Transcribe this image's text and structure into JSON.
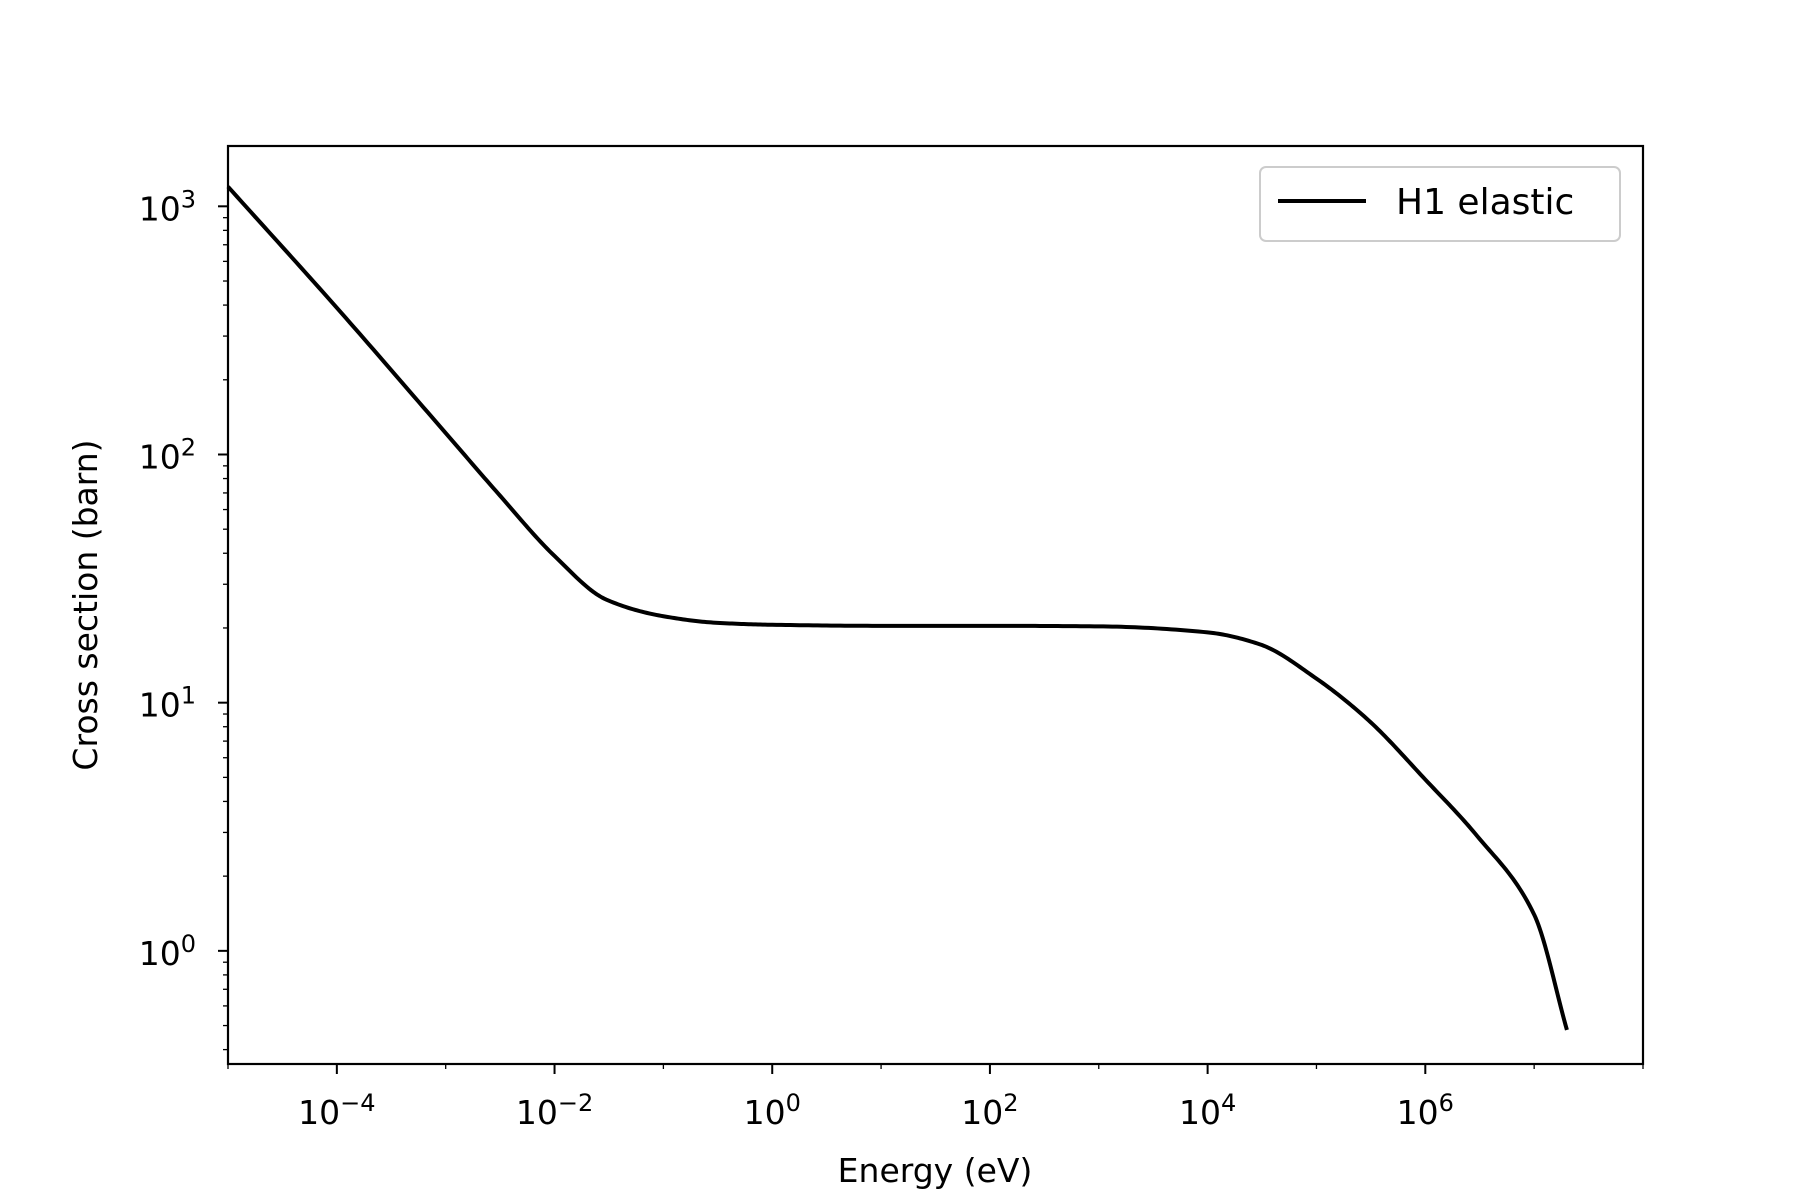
{
  "chart_data": {
    "type": "line",
    "xlabel": "Energy (eV)",
    "ylabel": "Cross section (barn)",
    "xscale": "log",
    "yscale": "log",
    "xlim": [
      1e-05,
      100000000.0
    ],
    "ylim": [
      0.35,
      1750
    ],
    "grid": false,
    "legend_position": "top-right",
    "x_ticks": [
      {
        "value": 0.0001,
        "base": "10",
        "exp": "−4"
      },
      {
        "value": 0.01,
        "base": "10",
        "exp": "−2"
      },
      {
        "value": 1,
        "base": "10",
        "exp": "0"
      },
      {
        "value": 100,
        "base": "10",
        "exp": "2"
      },
      {
        "value": 10000.0,
        "base": "10",
        "exp": "4"
      },
      {
        "value": 1000000.0,
        "base": "10",
        "exp": "6"
      }
    ],
    "y_ticks": [
      {
        "value": 1,
        "base": "10",
        "exp": "0"
      },
      {
        "value": 10,
        "base": "10",
        "exp": "1"
      },
      {
        "value": 100,
        "base": "10",
        "exp": "2"
      },
      {
        "value": 1000,
        "base": "10",
        "exp": "3"
      }
    ],
    "series": [
      {
        "name": "H1 elastic",
        "color": "#000000",
        "x": [
          1e-05,
          0.0001,
          0.001,
          0.003,
          0.01,
          0.03,
          0.1,
          0.3,
          1,
          10,
          100,
          1000,
          10000.0,
          30000.0,
          100000.0,
          300000.0,
          1000000.0,
          3000000.0,
          10000000.0,
          20000000.0
        ],
        "y": [
          1200,
          390,
          122,
          70,
          39,
          26,
          22.3,
          21.0,
          20.6,
          20.4,
          20.4,
          20.3,
          19.2,
          17.2,
          12.5,
          8.5,
          4.9,
          2.9,
          1.4,
          0.48
        ]
      }
    ]
  }
}
